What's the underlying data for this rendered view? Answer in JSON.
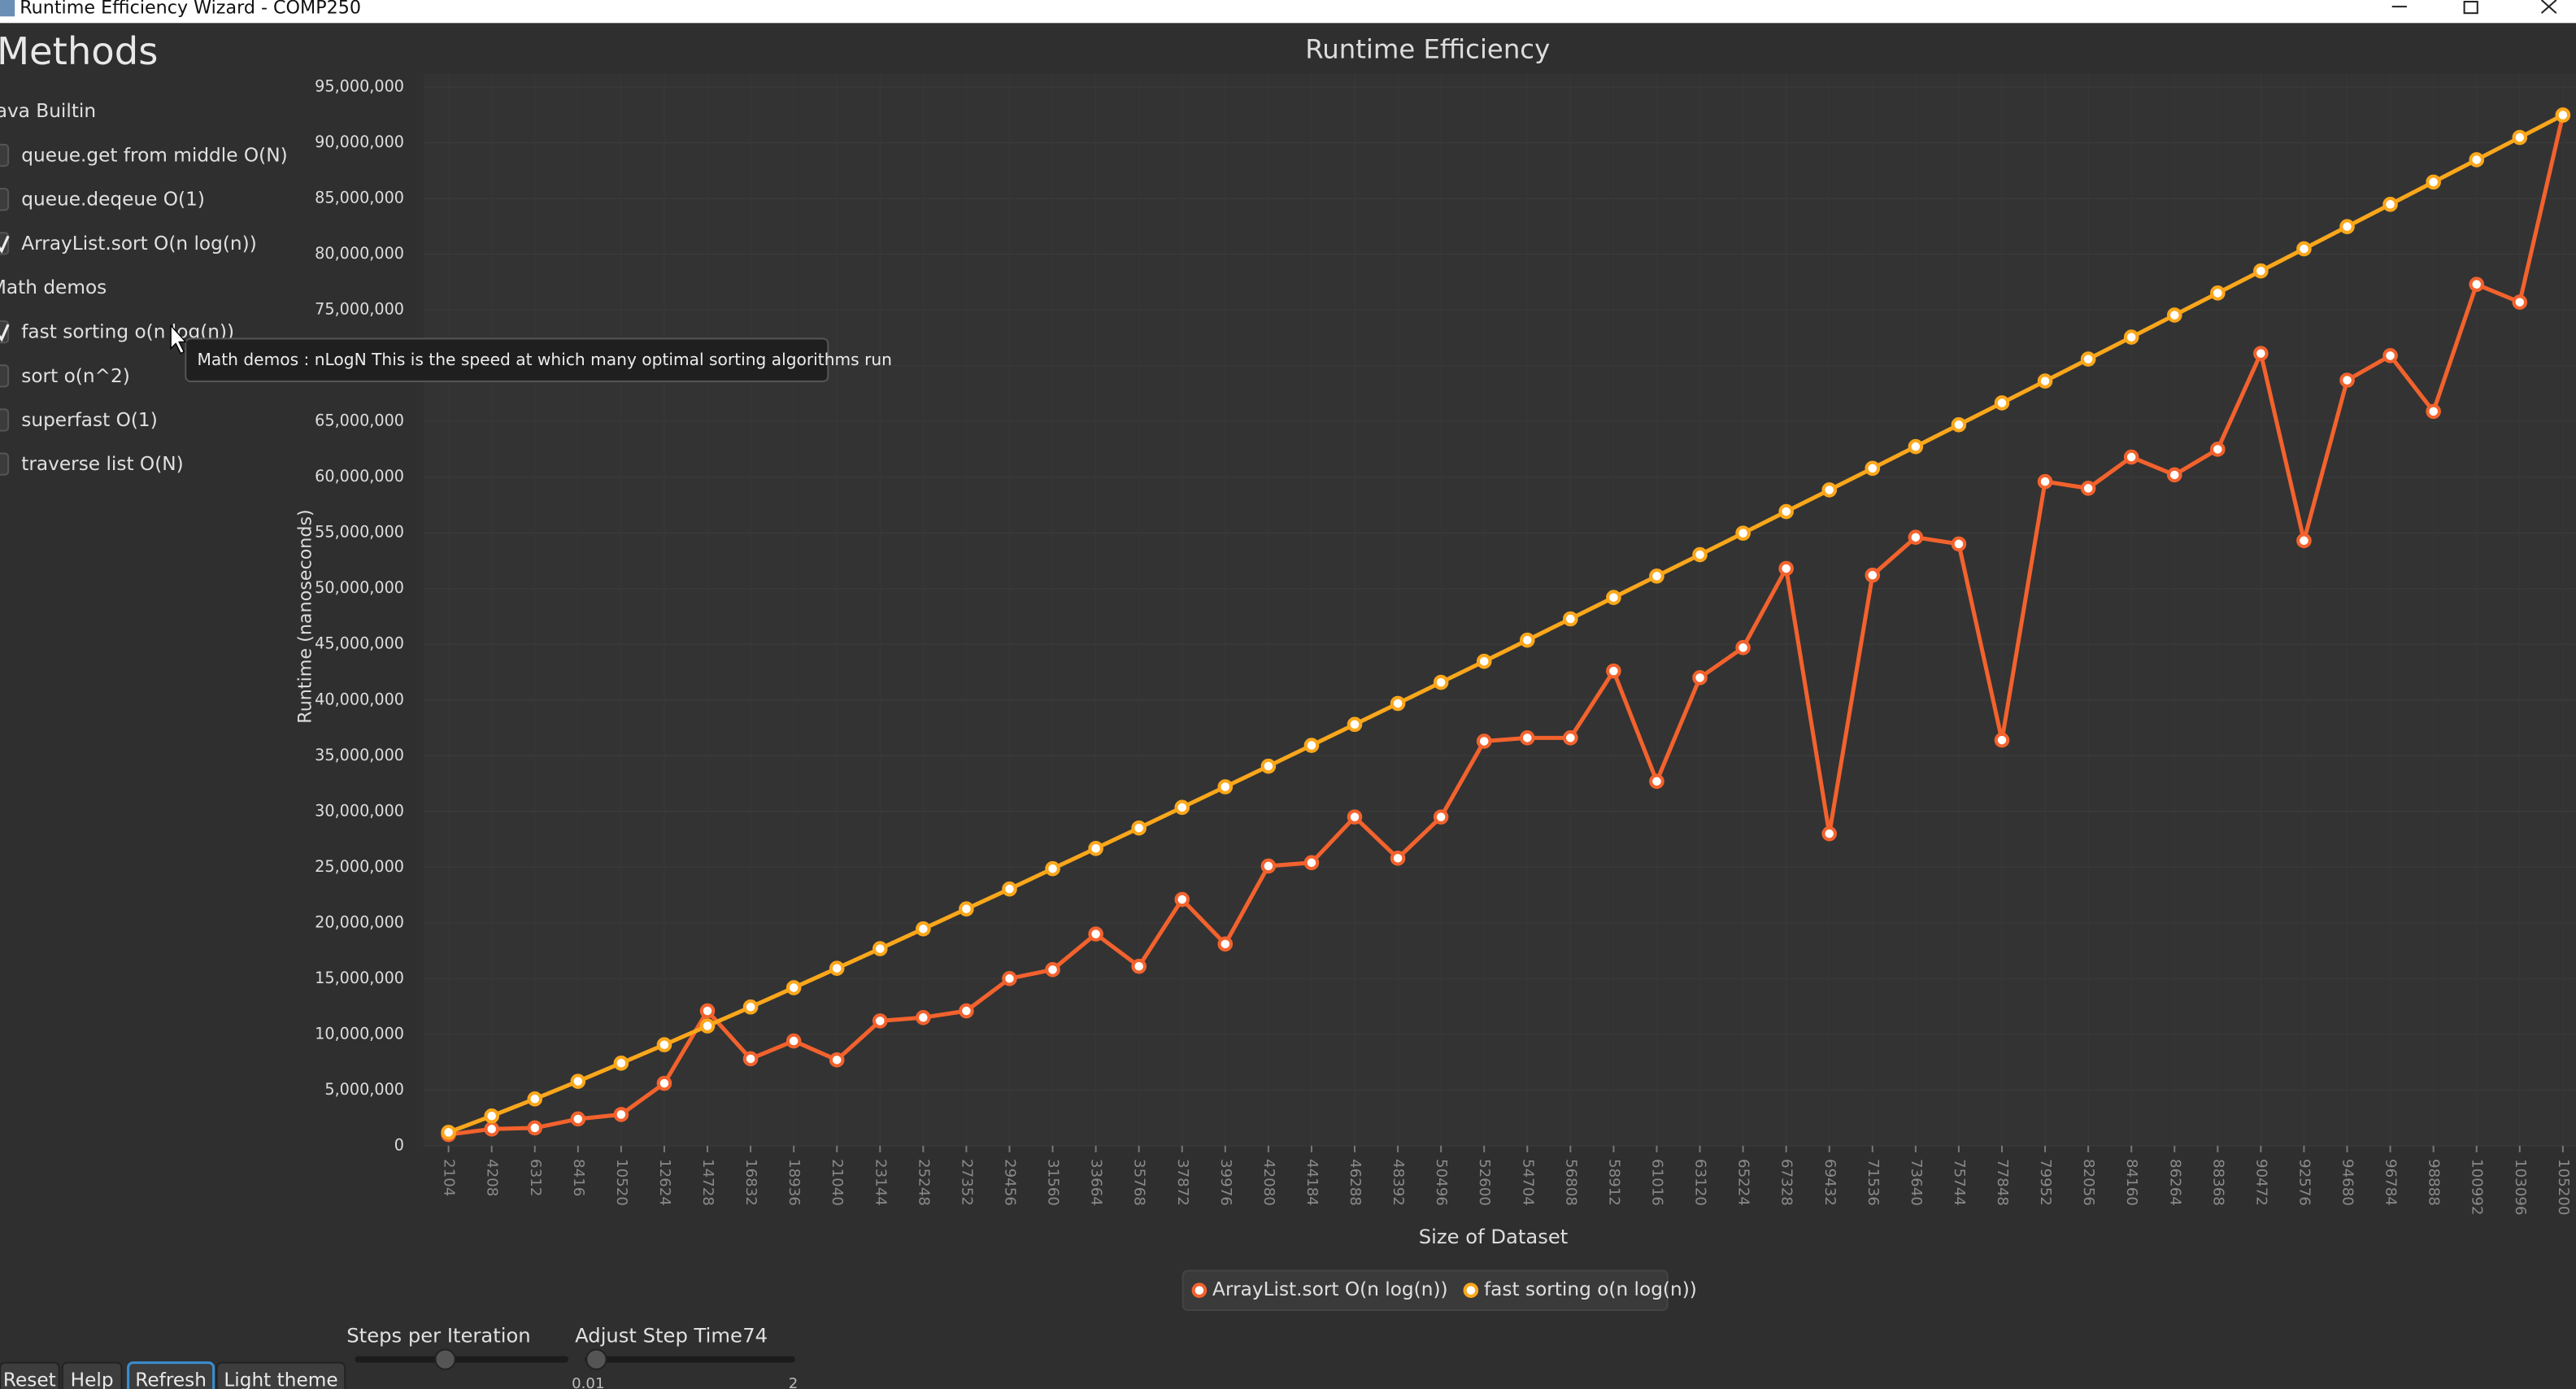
{
  "window": {
    "title": "Runtime Efficiency Wizard - COMP250"
  },
  "sidebar": {
    "heading": "Methods",
    "groups": [
      {
        "name": "Java Builtin",
        "items": [
          {
            "label": "queue.get from middle O(N)",
            "checked": false
          },
          {
            "label": "queue.deqeue O(1)",
            "checked": false
          },
          {
            "label": "ArrayList.sort O(n log(n))",
            "checked": true
          }
        ]
      },
      {
        "name": "Math demos",
        "items": [
          {
            "label": "fast sorting  o(n log(n))",
            "checked": true
          },
          {
            "label": "sort o(n^2)",
            "checked": false
          },
          {
            "label": "superfast O(1)",
            "checked": false
          },
          {
            "label": "traverse list O(N)",
            "checked": false
          }
        ]
      }
    ]
  },
  "tooltip": "Math demos : nLogN This is the speed at which many optimal sorting algorithms run",
  "controls": {
    "steps_label": "Steps per Iteration",
    "step_time_label": "Adjust Step Time",
    "step_time_value": "74",
    "slider_min": "0.01",
    "slider_max": "2",
    "buttons": [
      "Reset",
      "Help",
      "Refresh",
      "Light theme"
    ]
  },
  "chart_data": {
    "type": "line",
    "title": "Runtime Efficiency",
    "x_label": "Size of Dataset",
    "y_label": "Runtime (nanoseconds)",
    "x": [
      2104,
      4208,
      6312,
      8416,
      10520,
      12624,
      14728,
      16832,
      18936,
      21040,
      23144,
      25248,
      27352,
      29456,
      31560,
      33664,
      35768,
      37872,
      39976,
      42080,
      44184,
      46288,
      48392,
      50496,
      52600,
      54704,
      56808,
      58912,
      61016,
      63120,
      65224,
      67328,
      69432,
      71536,
      73640,
      75744,
      77848,
      79952,
      82056,
      84160,
      86264,
      88368,
      90472,
      92576,
      94680,
      96784,
      98888,
      100992,
      103096,
      105200
    ],
    "xlim": [
      900,
      105840
    ],
    "ylim": [
      0,
      95000000
    ],
    "yticks": [
      0,
      {
        "value": 5000000,
        "label": "5,000,000"
      },
      {
        "value": 10000000,
        "label": "10,000,000"
      },
      {
        "value": 15000000,
        "label": "15,000,000"
      },
      {
        "value": 20000000,
        "label": "20,000,000"
      },
      {
        "value": 25000000,
        "label": "25,000,000"
      },
      {
        "value": 30000000,
        "label": "30,000,000"
      },
      {
        "value": 35000000,
        "label": "35,000,000"
      },
      {
        "value": 40000000,
        "label": "40,000,000"
      },
      {
        "value": 45000000,
        "label": "45,000,000"
      },
      {
        "value": 50000000,
        "label": "50,000,000"
      },
      {
        "value": 55000000,
        "label": "55,000,000"
      },
      {
        "value": 60000000,
        "label": "60,000,000"
      },
      {
        "value": 65000000,
        "label": "65,000,000"
      },
      {
        "value": 70000000,
        "label": "70,000,000"
      },
      {
        "value": 75000000,
        "label": "75,000,000"
      },
      {
        "value": 80000000,
        "label": "80,000,000"
      },
      {
        "value": 85000000,
        "label": "85,000,000"
      },
      {
        "value": 90000000,
        "label": "90,000,000"
      },
      {
        "value": 95000000,
        "label": "95,000,000"
      }
    ],
    "grid": true,
    "legend": "bottom",
    "series": [
      {
        "name": "ArrayList.sort O(n log(n))",
        "color": "#f3622d",
        "values": [
          1000000,
          1500000,
          1600000,
          2400000,
          2800000,
          5600000,
          12100000,
          7800000,
          9400000,
          7700000,
          11200000,
          11500000,
          12100000,
          15000000,
          15800000,
          19000000,
          16100000,
          22100000,
          18100000,
          25100000,
          25400000,
          29500000,
          25800000,
          29500000,
          36300000,
          36600000,
          36600000,
          42600000,
          32700000,
          42000000,
          44700000,
          51800000,
          28000000,
          51200000,
          54600000,
          54000000,
          36400000,
          59600000,
          59000000,
          61800000,
          60200000,
          62500000,
          71100000,
          54300000,
          68700000,
          70900000,
          65900000,
          77300000,
          75700000,
          92500000
        ]
      },
      {
        "name": "fast sorting  o(n log(n))",
        "color": "#fba71b",
        "values": [
          1200000,
          2670000,
          4200000,
          5780000,
          7410000,
          9060000,
          10750000,
          12450000,
          14180000,
          15920000,
          17680000,
          19460000,
          21250000,
          23040000,
          24860000,
          26680000,
          28510000,
          30360000,
          32210000,
          34060000,
          35930000,
          37810000,
          39690000,
          41580000,
          43470000,
          45370000,
          47280000,
          49200000,
          51120000,
          53040000,
          54970000,
          56910000,
          58850000,
          60790000,
          62740000,
          64700000,
          66660000,
          68620000,
          70590000,
          72560000,
          74540000,
          76520000,
          78500000,
          80490000,
          82480000,
          84480000,
          86480000,
          88480000,
          90480000,
          92490000
        ]
      }
    ]
  }
}
